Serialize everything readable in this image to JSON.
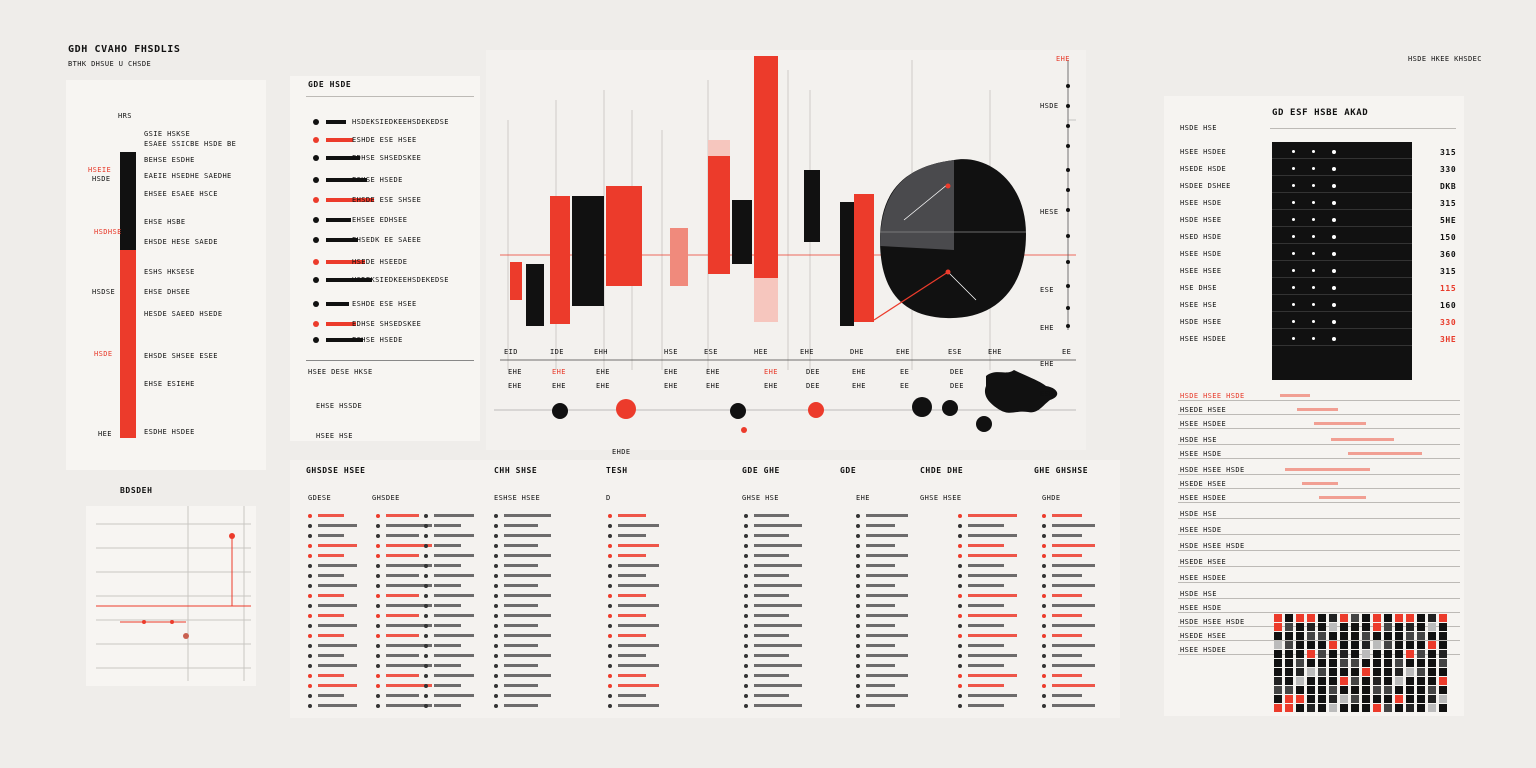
{
  "header": {
    "title": "GDH CVAHO FHSDLIS",
    "subtitle": "BTHK DHSUE U CHSDE",
    "right_tag": "HSDE HKEE KHSDEC"
  },
  "left_panel": {
    "section_label": "HRS",
    "rows": [
      "GSIE HSKSE",
      "ESAEE SSICBE HSDE BE",
      "BEHSE ESDHE",
      "EAEIE HSEDHE SAEDHE",
      "EHSEE ESAEE HSCE",
      "EHSE HSBE",
      "EHSDE HESE SAEDE",
      "ESHS HKSESE",
      "EHSE DHSEE",
      "HESDE SAEED HSEDE",
      "EHSDE SHSEE ESEE",
      "EHSE ESIEHE",
      "ESDHE HSDEE"
    ],
    "side_labels": [
      "HSEIE",
      "HSDE",
      "HSDHSE",
      "HSDSE",
      "HSDE",
      "HEE"
    ],
    "lower_label": "BDSDEH"
  },
  "mid_left_panel": {
    "header": "GDE HSDE",
    "rows": [
      "HSDEKSIEDKEEHSDEKEDSE",
      "ESHDE ESE HSEE",
      "EDHSE SHSEDSKEE",
      "ESHSE HSEDE",
      "EHSDE ESE SHSEE",
      "EHSEE EDHSEE",
      "EHSEDK EE SAEEE",
      "HSEDE HSEEDE"
    ],
    "footer": [
      "HSEE DESE HKSE",
      "EHSE HSSDE",
      "HSEE HSE"
    ]
  },
  "center_chart": {
    "x_labels": [
      "EID",
      "IDE",
      "EHH",
      "HSE",
      "ESE",
      "HEE",
      "EHE",
      "DHE",
      "EHE",
      "ESE",
      "EHE",
      "EE",
      "HSE",
      "EHE"
    ],
    "sub_labels": [
      "EHE",
      "EHE",
      "EHE",
      "EHE",
      "EHE",
      "EHE",
      "DEE",
      "EHE",
      "EE",
      "DEE"
    ],
    "bottom_label": "EHDE",
    "red_label": "EHE",
    "right_labels": [
      "HSDE",
      "HESE",
      "ESE",
      "EHE",
      "EHE",
      "ESE"
    ]
  },
  "bottom_tables": {
    "headers": [
      "GHSDSE HSEE",
      "CHH SHSE",
      "TESH",
      "GDE GHE",
      "GDE",
      "CHDE DHE",
      "GHE GHSHSE"
    ],
    "subheaders": [
      "GDESE",
      "GHSDEE",
      "ESHSE HSEE",
      "D",
      "GHSE HSE",
      "EHE",
      "GHSE HSEE",
      "GHDE"
    ]
  },
  "right_panel": {
    "title": "GD ESF HSBE AKAD",
    "sub": "HSDE HSE",
    "rows": [
      "HSEE HSDEE",
      "HSEDE HSDE",
      "HSDEE DSHEE",
      "HSEE HSDE",
      "HSDE HSEE",
      "HSED HSDE",
      "HSEE HSDE",
      "HSEE HSEE",
      "HSE DHSE",
      "HSEE HSE",
      "HSDE HSEE"
    ],
    "values": [
      "315",
      "330",
      "DKB",
      "315",
      "5HE",
      "150",
      "360",
      "315",
      "115",
      "160",
      "330",
      "3HE"
    ],
    "footer_rows": [
      "HSDE HSEE HSDE",
      "HSEDE HSEE",
      "HSEE HSDEE",
      "HSDE HSE",
      "HSEE HSDE"
    ]
  },
  "colors": {
    "red": "#ec3b2b",
    "black": "#111111",
    "bg": "#efedea"
  }
}
